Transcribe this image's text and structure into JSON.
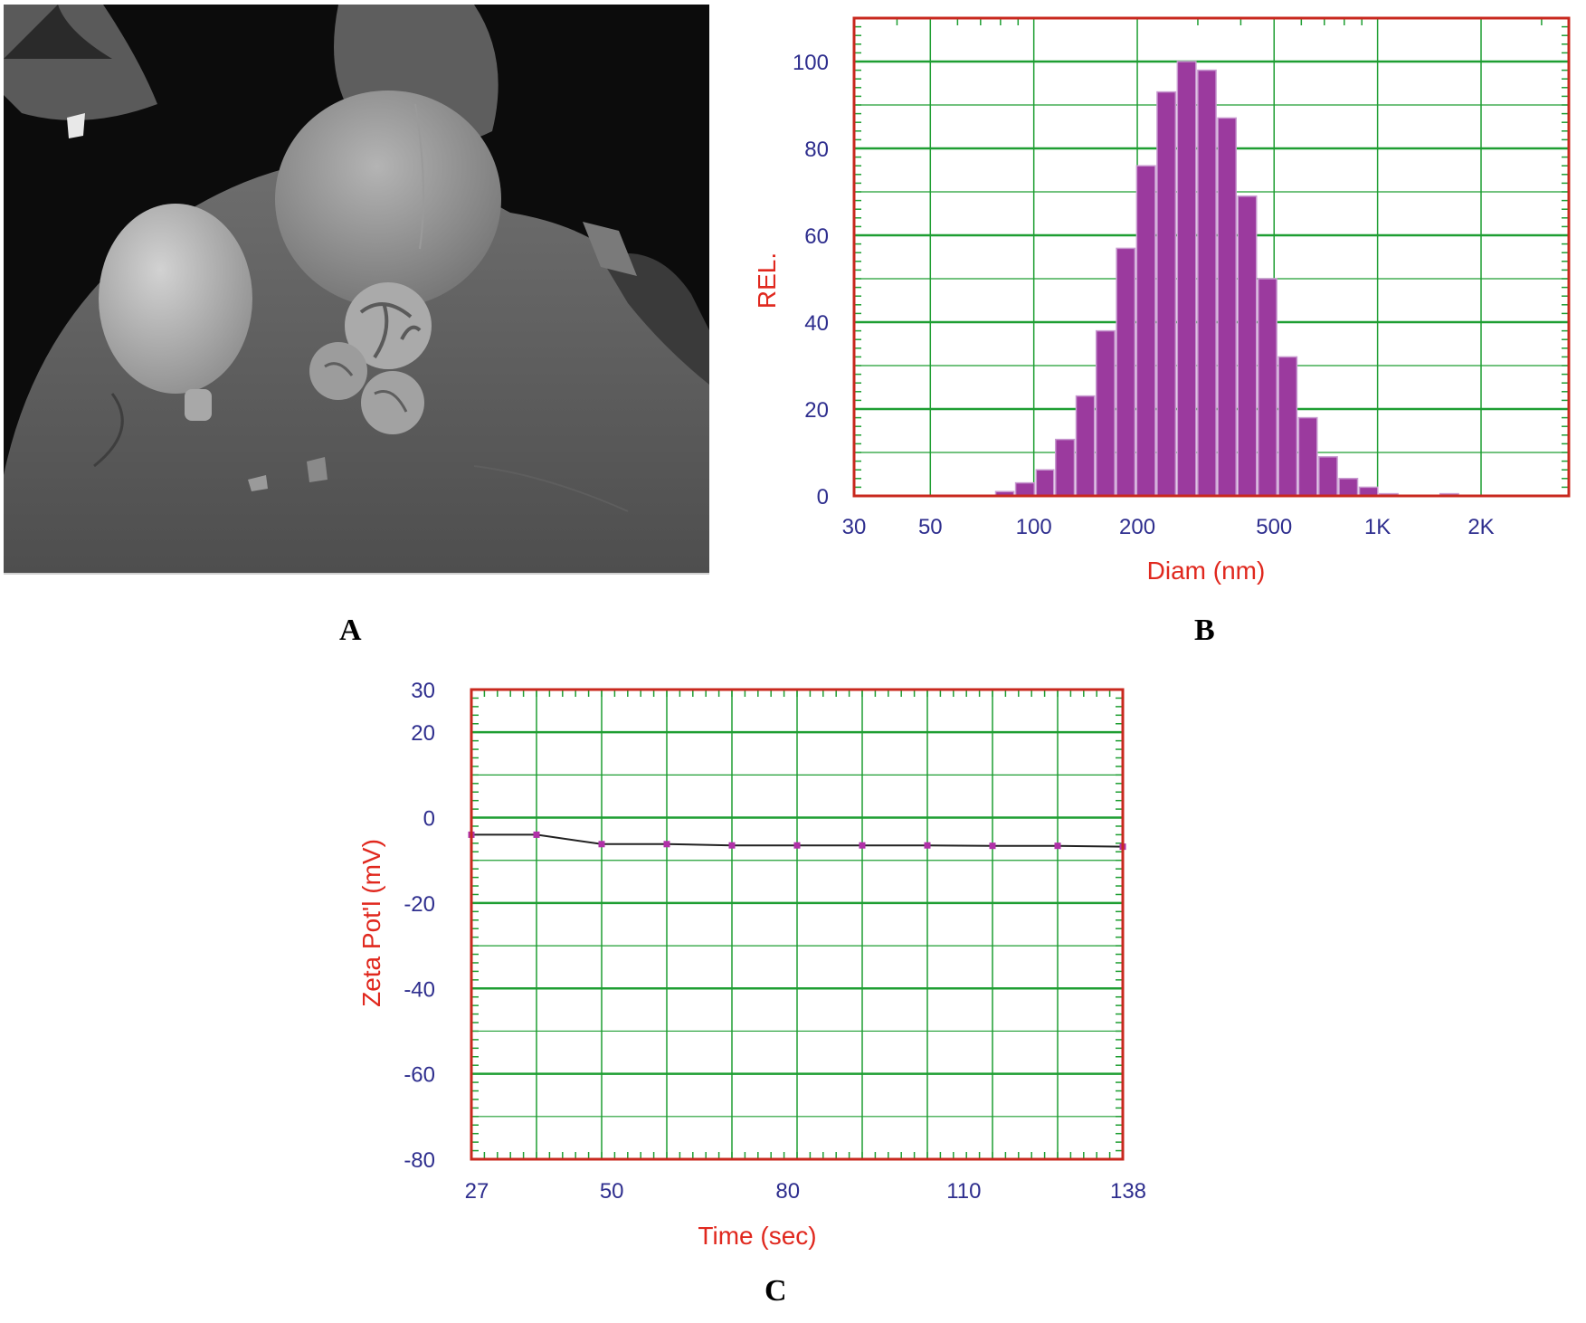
{
  "panels": {
    "a": "A",
    "b": "B",
    "c": "C"
  },
  "colors": {
    "frame": "#c8281e",
    "grid": "#1e9e32",
    "bar": "#9b3a9e",
    "bar_edge": "#c89ad0",
    "tick_text": "#2e2e8e",
    "axis_title": "#e0281e",
    "line": "#222222",
    "marker": "#b030a8"
  },
  "chart_data": [
    {
      "type": "bar",
      "panel": "B",
      "xscale": "log",
      "xlabel": "Diam (nm)",
      "ylabel": "REL.",
      "xlim": [
        30,
        3600
      ],
      "ylim": [
        0,
        110
      ],
      "xticks": [
        30,
        50,
        100,
        200,
        500,
        1000,
        2000
      ],
      "xtick_labels": [
        "30",
        "50",
        "100",
        "200",
        "500",
        "1K",
        "2K"
      ],
      "yticks": [
        0,
        20,
        40,
        60,
        80,
        100
      ],
      "yticks_major": [
        0,
        10,
        20,
        30,
        40,
        50,
        60,
        70,
        80,
        90,
        100
      ],
      "bin_edges": [
        77,
        88,
        101,
        115,
        132,
        151,
        173,
        198,
        227,
        260,
        298,
        341,
        390,
        447,
        512,
        586,
        671,
        768,
        880,
        1007,
        1153,
        1320,
        1511,
        1730,
        1981,
        2268
      ],
      "values": [
        1,
        3,
        6,
        13,
        23,
        38,
        57,
        76,
        93,
        100,
        98,
        87,
        69,
        50,
        32,
        18,
        9,
        4,
        2,
        0.5,
        0,
        0,
        0.5,
        0,
        0
      ]
    },
    {
      "type": "line",
      "panel": "C",
      "xlabel": "Time (sec)",
      "ylabel": "Zeta Pot'l (mV)",
      "xlim": [
        27,
        138
      ],
      "ylim": [
        -80,
        30
      ],
      "xticks": [
        27,
        50,
        80,
        110,
        138
      ],
      "yticks": [
        30,
        20,
        0,
        -20,
        -40,
        -60,
        -80
      ],
      "x": [
        27,
        38.1,
        49.2,
        60.3,
        71.4,
        82.5,
        93.6,
        104.7,
        115.8,
        126.9,
        138
      ],
      "y": [
        -4,
        -4,
        -6.2,
        -6.2,
        -6.5,
        -6.5,
        -6.5,
        -6.5,
        -6.6,
        -6.6,
        -6.8
      ]
    }
  ]
}
